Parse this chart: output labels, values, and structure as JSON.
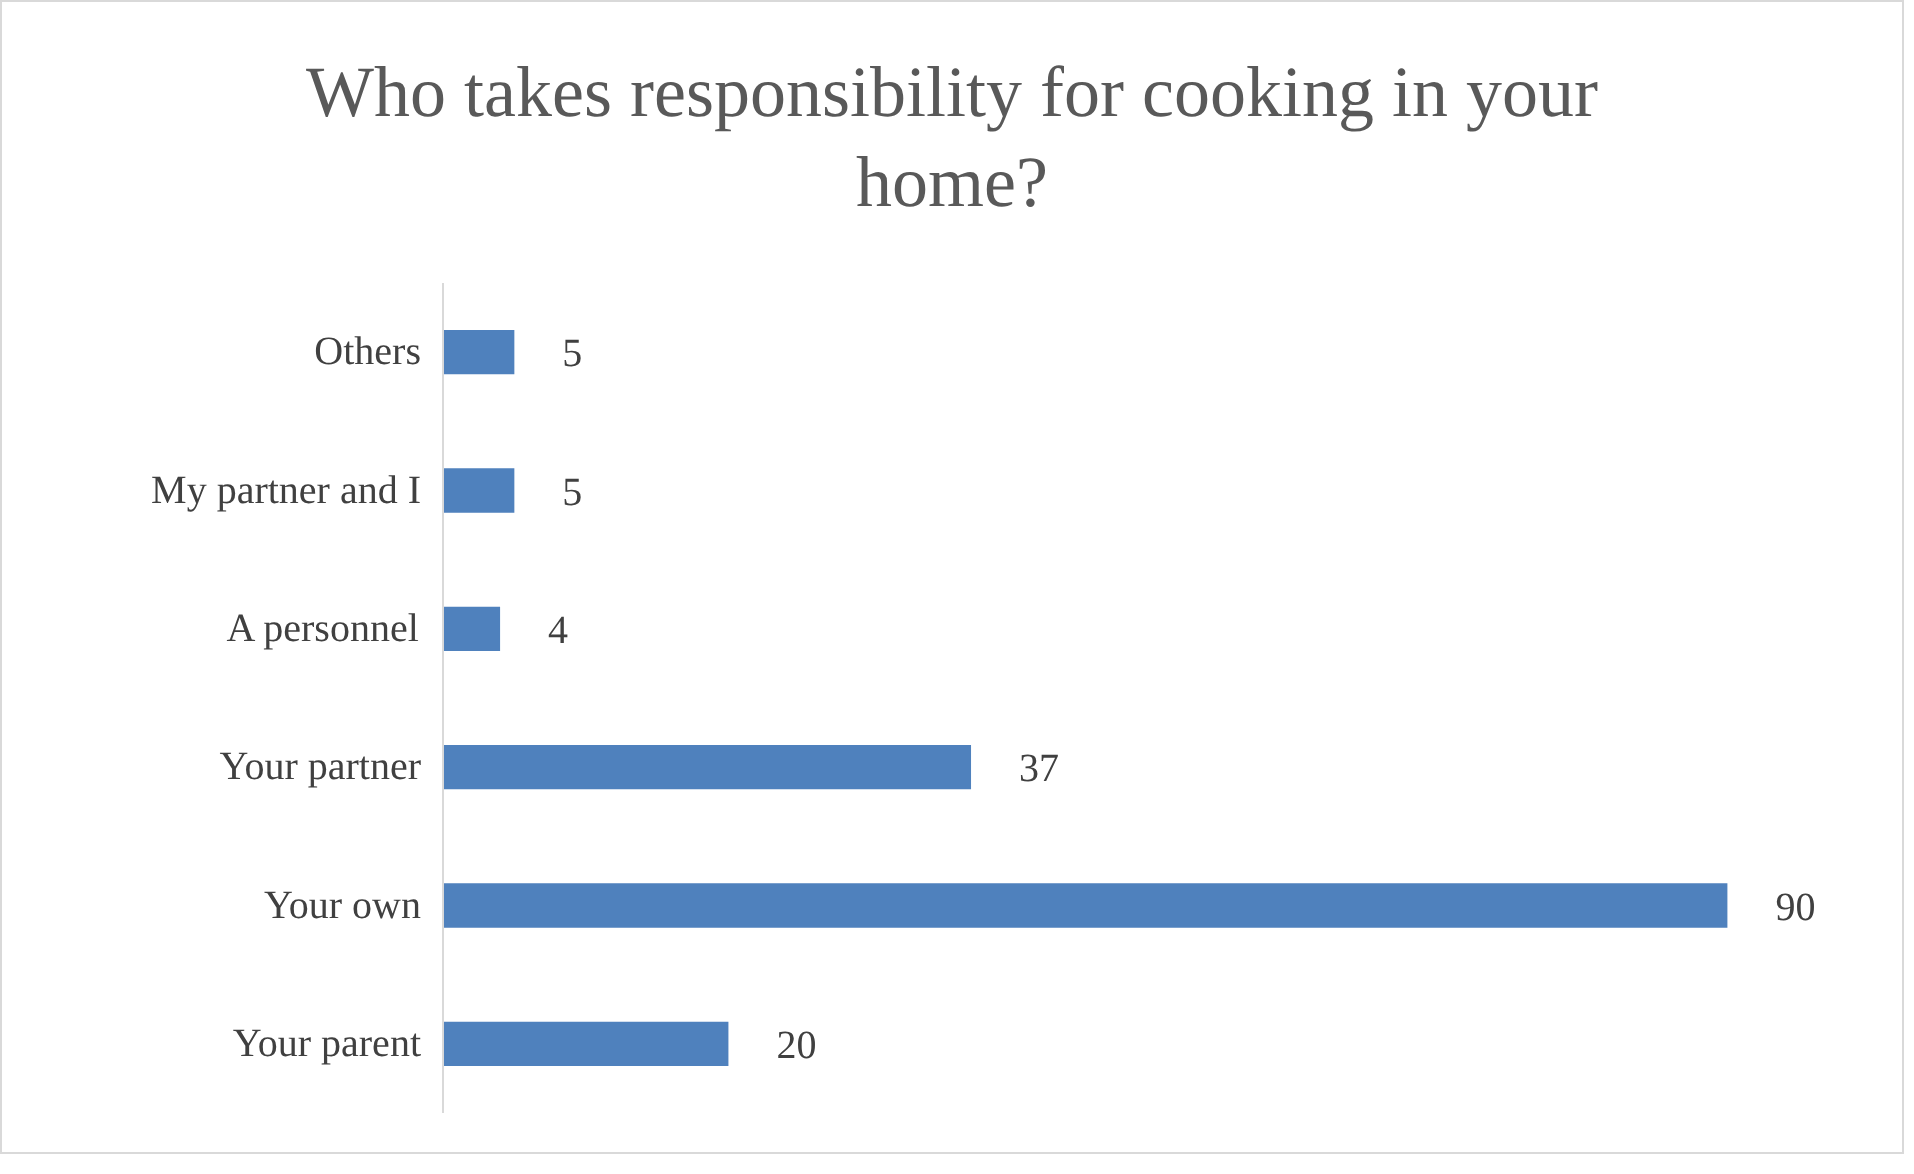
{
  "chart_data": {
    "type": "bar",
    "orientation": "horizontal",
    "title": "Who takes responsibility for cooking in your home?",
    "categories": [
      "Others",
      "My partner and I",
      "A personnel",
      "Your partner",
      "Your own",
      "Your parent"
    ],
    "values": [
      5,
      5,
      4,
      37,
      90,
      20
    ],
    "color": "#4f81bd",
    "data_labels": true,
    "grid": false
  }
}
